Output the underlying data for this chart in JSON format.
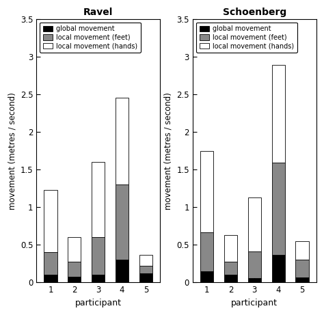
{
  "ravel": {
    "title": "Ravel",
    "participants": [
      1,
      2,
      3,
      4,
      5
    ],
    "global_movement": [
      0.1,
      0.08,
      0.1,
      0.3,
      0.12
    ],
    "local_feet": [
      0.3,
      0.2,
      0.5,
      1.0,
      0.1
    ],
    "local_hands": [
      0.83,
      0.32,
      1.0,
      1.15,
      0.15
    ]
  },
  "schoenberg": {
    "title": "Schoenberg",
    "participants": [
      1,
      2,
      3,
      4,
      5
    ],
    "global_movement": [
      0.15,
      0.1,
      0.06,
      0.37,
      0.07
    ],
    "local_feet": [
      0.52,
      0.18,
      0.35,
      1.22,
      0.23
    ],
    "local_hands": [
      1.08,
      0.35,
      0.72,
      1.3,
      0.25
    ]
  },
  "colors": {
    "global": "#000000",
    "feet": "#888888",
    "hands": "#ffffff"
  },
  "legend_labels": [
    "global movement",
    "local movement (feet)",
    "local movement (hands)"
  ],
  "ylabel": "movement (metres / second)",
  "xlabel": "participant",
  "ylim": [
    0,
    3.5
  ],
  "yticks": [
    0,
    0.5,
    1.0,
    1.5,
    2.0,
    2.5,
    3.0,
    3.5
  ],
  "ytick_labels": [
    "0",
    "0.5",
    "1",
    "1.5",
    "2",
    "2.5",
    "3",
    "3.5"
  ],
  "bar_width": 0.55,
  "edge_color": "#000000",
  "bg_color": "#ffffff"
}
